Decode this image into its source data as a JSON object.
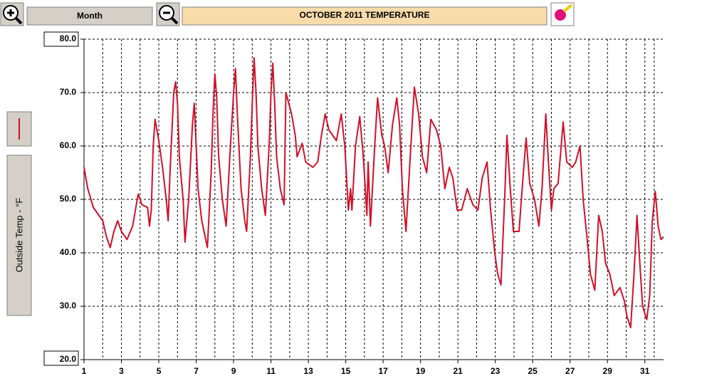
{
  "ui": {
    "range_button": "Month"
  },
  "chart_data": {
    "type": "line",
    "title": "OCTOBER 2011 TEMPERATURE",
    "ylabel": "Outside Temp - °F",
    "x": [
      1,
      1.2,
      1.5,
      1.8,
      2.0,
      2.2,
      2.4,
      2.6,
      2.8,
      3.0,
      3.3,
      3.6,
      3.8,
      3.9,
      4.1,
      4.4,
      4.5,
      4.6,
      4.7,
      4.8,
      5.0,
      5.2,
      5.4,
      5.5,
      5.6,
      5.8,
      5.9,
      6.0,
      6.1,
      6.2,
      6.3,
      6.4,
      6.6,
      6.8,
      6.9,
      7.0,
      7.1,
      7.3,
      7.6,
      7.8,
      7.9,
      8.0,
      8.1,
      8.2,
      8.4,
      8.6,
      8.8,
      9.0,
      9.1,
      9.2,
      9.4,
      9.6,
      9.7,
      9.9,
      10.0,
      10.1,
      10.2,
      10.3,
      10.5,
      10.7,
      10.9,
      11.0,
      11.1,
      11.2,
      11.3,
      11.5,
      11.7,
      11.8,
      12.1,
      12.3,
      12.4,
      12.67,
      12.86,
      13.24,
      13.5,
      13.7,
      13.9,
      14.1,
      14.3,
      14.5,
      14.76,
      14.95,
      15.14,
      15.26,
      15.33,
      15.52,
      15.75,
      15.94,
      16.13,
      16.2,
      16.32,
      16.55,
      16.7,
      16.93,
      17.08,
      17.27,
      17.5,
      17.73,
      17.88,
      18.03,
      18.22,
      18.4,
      18.67,
      18.9,
      19.1,
      19.33,
      19.55,
      19.86,
      20.08,
      20.3,
      20.54,
      20.73,
      20.96,
      21.2,
      21.5,
      21.8,
      22.07,
      22.3,
      22.56,
      22.75,
      22.97,
      23.13,
      23.3,
      23.5,
      23.62,
      23.8,
      23.97,
      24.27,
      24.5,
      24.65,
      24.84,
      25.1,
      25.33,
      25.5,
      25.7,
      25.84,
      26.0,
      26.13,
      26.36,
      26.63,
      26.82,
      27.12,
      27.3,
      27.53,
      27.7,
      27.93,
      28.09,
      28.32,
      28.53,
      28.72,
      28.9,
      29.13,
      29.36,
      29.67,
      29.9,
      30.05,
      30.24,
      30.42,
      30.58,
      30.73,
      30.88,
      31.1,
      31.26,
      31.4,
      31.56,
      31.71,
      31.86,
      32
    ],
    "series": [
      {
        "color": "#d0102a",
        "values": [
          56,
          52,
          48.5,
          47,
          46,
          43,
          41,
          44,
          46,
          44,
          42.5,
          45,
          49,
          51,
          49,
          48.5,
          45,
          48,
          60,
          65,
          61,
          56,
          50,
          46,
          55,
          70,
          72,
          68,
          58,
          54,
          50,
          42,
          50,
          64,
          68,
          60,
          52,
          46,
          41,
          55,
          66,
          73.5,
          69,
          58,
          50,
          45,
          58,
          70,
          74.5,
          66,
          52,
          46,
          44,
          58,
          68,
          76.5,
          70,
          60,
          52,
          47,
          60,
          70,
          75.5,
          68,
          58,
          52,
          49,
          70,
          66,
          62,
          58,
          60.5,
          57,
          56,
          57,
          62,
          66,
          63,
          62,
          61,
          66,
          60,
          48,
          52,
          48,
          60,
          65.5,
          58,
          47,
          57,
          45,
          60,
          69,
          62,
          60,
          55,
          64,
          69,
          64,
          52,
          44,
          55,
          71,
          66,
          58,
          55,
          65,
          63,
          60,
          52,
          56,
          54,
          48,
          48,
          52,
          49,
          48,
          54,
          57,
          48,
          40,
          36,
          34,
          50,
          62,
          52,
          44,
          44,
          55,
          61.5,
          53,
          50,
          45,
          52,
          66,
          57,
          48,
          52,
          53,
          64.5,
          57,
          56,
          57,
          60,
          50,
          42,
          36,
          33,
          47,
          44,
          38,
          36,
          32,
          33.5,
          31,
          28,
          26,
          36,
          47,
          38,
          30,
          27.5,
          32,
          46,
          51.5,
          45,
          42.5,
          43
        ]
      }
    ],
    "xlim": [
      1,
      32
    ],
    "xticks": [
      1,
      3,
      5,
      7,
      9,
      11,
      13,
      15,
      17,
      19,
      21,
      23,
      25,
      27,
      29,
      31
    ],
    "ylim": [
      20,
      80
    ],
    "yticks": [
      {
        "value": 20,
        "label": "20.0"
      },
      {
        "value": 30,
        "label": "30.0"
      },
      {
        "value": 40,
        "label": "40.0"
      },
      {
        "value": 50,
        "label": "50.0"
      },
      {
        "value": 60,
        "label": "60.0"
      },
      {
        "value": 70,
        "label": "70.0"
      },
      {
        "value": 80,
        "label": "80.0"
      }
    ],
    "grid": true
  }
}
